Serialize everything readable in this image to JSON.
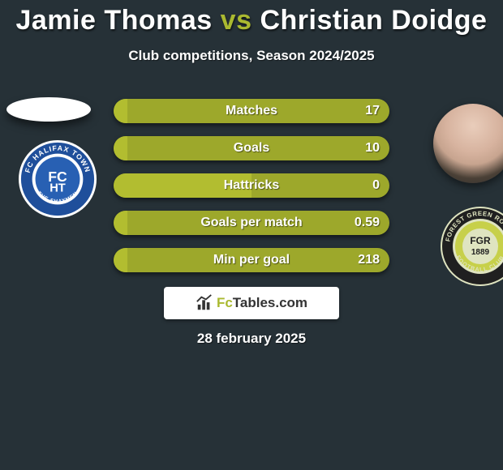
{
  "background_color": "#263137",
  "accent_color": "#aab930",
  "bar_base_color": "#9da82b",
  "bar_fill_color": "#b2bd30",
  "title": {
    "player1": "Jamie Thomas",
    "vs": "vs",
    "player2": "Christian Doidge",
    "fontsize": 34,
    "color_players": "#ffffff",
    "color_vs": "#aab930"
  },
  "subtitle": "Club competitions, Season 2024/2025",
  "date": "28 february 2025",
  "player1": {
    "name": "Jamie Thomas",
    "club": "FC Halifax Town",
    "avatar_shape": "ellipse-placeholder"
  },
  "player2": {
    "name": "Christian Doidge",
    "club": "Forest Green Rovers",
    "club_founded": "1889"
  },
  "club_left": {
    "outer_color": "#ffffff",
    "ring_color": "#1f4f9b",
    "inner_color": "#2860b3",
    "text_top": "FC HALIFAX TOWN",
    "text_bottom": "THE SHAYMEN",
    "mono": "HT"
  },
  "club_right": {
    "outer_color": "#dfe4c0",
    "ring_color": "#202020",
    "band_color": "#c7d04a",
    "text_top": "FOREST GREEN ROVERS",
    "text_bottom": "FOOTBALL CLUB",
    "center_top": "FGR",
    "center_year": "1889"
  },
  "stats": [
    {
      "label": "Matches",
      "left_val": null,
      "right_val": "17",
      "left_width_pct": 5
    },
    {
      "label": "Goals",
      "left_val": null,
      "right_val": "10",
      "left_width_pct": 5
    },
    {
      "label": "Hattricks",
      "left_val": null,
      "right_val": "0",
      "left_width_pct": 50
    },
    {
      "label": "Goals per match",
      "left_val": null,
      "right_val": "0.59",
      "left_width_pct": 5
    },
    {
      "label": "Min per goal",
      "left_val": null,
      "right_val": "218",
      "left_width_pct": 5
    }
  ],
  "logo": {
    "brand_prefix": "Fc",
    "brand_suffix": "Tables.com"
  }
}
